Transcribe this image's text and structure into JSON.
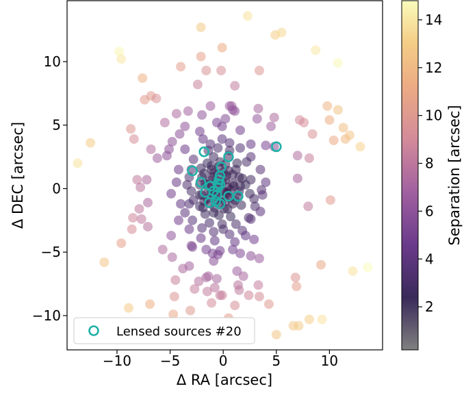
{
  "chart_data": {
    "type": "scatter",
    "xlabel": "Δ RA [arcsec]",
    "ylabel": "Δ DEC [arcsec]",
    "colorbar_label": "Separation [arcsec]",
    "xlim": [
      -14.7,
      15
    ],
    "ylim": [
      -12.7,
      14.8
    ],
    "xticks": [
      -10,
      -5,
      0,
      5,
      10
    ],
    "yticks": [
      -10,
      -5,
      0,
      5,
      10
    ],
    "colorbar_range": [
      0.2,
      14.8
    ],
    "colorbar_ticks": [
      2,
      4,
      6,
      8,
      10,
      12,
      14
    ],
    "colormap": "inferno-like (dark purple = near, pale yellow = far)",
    "grid": false,
    "legend_position": "bottom-left",
    "series": [
      {
        "name": "",
        "marker": "filled circle, alpha 0.5, colored by separation",
        "points": [
          [
            2.3,
            13.6
          ],
          [
            -2.1,
            12.7
          ],
          [
            4.9,
            12.1
          ],
          [
            5.5,
            12.3
          ],
          [
            -9.8,
            10.8
          ],
          [
            -9.6,
            10.2
          ],
          [
            8.7,
            10.9
          ],
          [
            -2.1,
            10.4
          ],
          [
            -0.1,
            11.1
          ],
          [
            10.8,
            9.9
          ],
          [
            -4.0,
            9.6
          ],
          [
            -1.6,
            9.3
          ],
          [
            -0.2,
            9.3
          ],
          [
            3.4,
            9.3
          ],
          [
            -7.6,
            8.7
          ],
          [
            -2.4,
            8.2
          ],
          [
            1.1,
            8.1
          ],
          [
            -6.8,
            7.3
          ],
          [
            -6.3,
            7.1
          ],
          [
            -7.4,
            7.0
          ],
          [
            3.3,
            6.3
          ],
          [
            9.8,
            6.5
          ],
          [
            10.8,
            6.2
          ],
          [
            -3.3,
            6.1
          ],
          [
            -1.2,
            6.5
          ],
          [
            0.6,
            6.5
          ],
          [
            0.9,
            6.2
          ],
          [
            0.8,
            6.5
          ],
          [
            1.1,
            6.1
          ],
          [
            -4.4,
            5.9
          ],
          [
            -2.0,
            5.8
          ],
          [
            -0.6,
            5.2
          ],
          [
            0.2,
            5.5
          ],
          [
            3.2,
            5.5
          ],
          [
            4.8,
            5.6
          ],
          [
            7.2,
            5.4
          ],
          [
            10.0,
            5.4
          ],
          [
            11.3,
            4.8
          ],
          [
            -5.5,
            5.2
          ],
          [
            -8.7,
            4.7
          ],
          [
            -4.1,
            4.3
          ],
          [
            -2.2,
            4.5
          ],
          [
            -3.6,
            4.9
          ],
          [
            -0.1,
            4.9
          ],
          [
            1.6,
            4.6
          ],
          [
            4.5,
            4.9
          ],
          [
            7.6,
            5.2
          ],
          [
            8.4,
            4.3
          ],
          [
            11.9,
            4.2
          ],
          [
            -12.5,
            3.6
          ],
          [
            -8.4,
            3.9
          ],
          [
            -4.8,
            3.7
          ],
          [
            -0.1,
            3.9
          ],
          [
            -1.9,
            3.9
          ],
          [
            -1.2,
            3.5
          ],
          [
            0.6,
            3.6
          ],
          [
            2.6,
            3.5
          ],
          [
            4.0,
            3.4
          ],
          [
            10.4,
            3.8
          ],
          [
            11.5,
            3.9
          ],
          [
            -6.8,
            3.1
          ],
          [
            -5.1,
            3.1
          ],
          [
            -3.6,
            3.1
          ],
          [
            -1.4,
            3.0
          ],
          [
            -0.5,
            3.2
          ],
          [
            0.6,
            3.0
          ],
          [
            1.6,
            3.2
          ],
          [
            4.8,
            3.3
          ],
          [
            12.9,
            3.3
          ],
          [
            -13.7,
            2.0
          ],
          [
            -6.2,
            2.4
          ],
          [
            -5.3,
            2.6
          ],
          [
            -2.8,
            2.3
          ],
          [
            -1.5,
            2.0
          ],
          [
            -0.9,
            2.5
          ],
          [
            0.5,
            2.6
          ],
          [
            2.6,
            2.5
          ],
          [
            3.5,
            1.5
          ],
          [
            7.0,
            2.6
          ],
          [
            8.1,
            2.4
          ],
          [
            -4.2,
            1.5
          ],
          [
            -3.0,
            1.5
          ],
          [
            -2.1,
            1.6
          ],
          [
            -1.1,
            1.8
          ],
          [
            -0.3,
            2.1
          ],
          [
            1.3,
            2.0
          ],
          [
            2.2,
            2.1
          ],
          [
            -8.1,
            0.7
          ],
          [
            -7.2,
            0.7
          ],
          [
            -3.2,
            0.9
          ],
          [
            -2.0,
            0.9
          ],
          [
            -0.9,
            1.2
          ],
          [
            0.3,
            1.0
          ],
          [
            1.5,
            0.9
          ],
          [
            2.6,
            0.7
          ],
          [
            4.0,
            0.5
          ],
          [
            7.0,
            0.8
          ],
          [
            -7.8,
            0.1
          ],
          [
            -4.4,
            0.5
          ],
          [
            -3.4,
            0.3
          ],
          [
            -1.5,
            0.3
          ],
          [
            -0.6,
            0.6
          ],
          [
            0.9,
            0.4
          ],
          [
            2.1,
            0.3
          ],
          [
            3.6,
            -0.1
          ],
          [
            -4.9,
            -0.4
          ],
          [
            -3.0,
            -0.2
          ],
          [
            -2.2,
            -0.5
          ],
          [
            -1.1,
            -0.3
          ],
          [
            0.4,
            -0.4
          ],
          [
            1.5,
            -0.2
          ],
          [
            2.5,
            -0.4
          ],
          [
            3.7,
            -0.5
          ],
          [
            -2.8,
            -0.9
          ],
          [
            -1.8,
            -1.0
          ],
          [
            -0.2,
            -1.1
          ],
          [
            1.1,
            -0.9
          ],
          [
            2.9,
            -0.8
          ],
          [
            10.1,
            -0.9
          ],
          [
            -7.1,
            -1.1
          ],
          [
            -4.0,
            -1.2
          ],
          [
            -3.2,
            -1.2
          ],
          [
            -2.2,
            -1.4
          ],
          [
            -0.8,
            -1.5
          ],
          [
            0.4,
            -1.6
          ],
          [
            1.7,
            -1.3
          ],
          [
            3.0,
            -1.4
          ],
          [
            -7.9,
            -1.6
          ],
          [
            -3.6,
            -1.9
          ],
          [
            -1.7,
            -2.0
          ],
          [
            -0.4,
            -2.1
          ],
          [
            0.7,
            -2.2
          ],
          [
            2.4,
            -2.3
          ],
          [
            3.5,
            -1.8
          ],
          [
            8.0,
            -1.4
          ],
          [
            -8.5,
            -2.3
          ],
          [
            -7.7,
            -2.4
          ],
          [
            -4.2,
            -2.5
          ],
          [
            -2.9,
            -2.5
          ],
          [
            -1.3,
            -2.7
          ],
          [
            -0.1,
            -2.8
          ],
          [
            1.2,
            -2.8
          ],
          [
            2.6,
            -2.4
          ],
          [
            -2.0,
            -3.1
          ],
          [
            0.0,
            -3.2
          ],
          [
            1.8,
            -3.3
          ],
          [
            -7.1,
            -3.0
          ],
          [
            -8.6,
            -3.2
          ],
          [
            -3.2,
            -3.2
          ],
          [
            -0.9,
            -3.4
          ],
          [
            0.6,
            -3.6
          ],
          [
            2.1,
            -3.7
          ],
          [
            -4.9,
            -3.7
          ],
          [
            -2.1,
            -3.9
          ],
          [
            -0.8,
            -4.1
          ],
          [
            1.1,
            -4.2
          ],
          [
            2.9,
            -4.0
          ],
          [
            -2.9,
            -4.6
          ],
          [
            -1.6,
            -4.8
          ],
          [
            -0.3,
            -4.9
          ],
          [
            0.9,
            -4.8
          ],
          [
            -9.6,
            -4.3
          ],
          [
            -5.7,
            -4.8
          ],
          [
            -3.0,
            -4.5
          ],
          [
            -1.0,
            -5.1
          ],
          [
            -4.8,
            -5.4
          ],
          [
            -0.5,
            -5.2
          ],
          [
            1.6,
            -5.1
          ],
          [
            2.6,
            -5.3
          ],
          [
            -11.2,
            -5.8
          ],
          [
            -3.2,
            -6.1
          ],
          [
            -0.9,
            -5.7
          ],
          [
            3.4,
            -5.5
          ],
          [
            9.2,
            -6.0
          ],
          [
            12.2,
            -6.5
          ],
          [
            13.6,
            -6.2
          ],
          [
            -3.8,
            -6.3
          ],
          [
            -1.4,
            -6.9
          ],
          [
            1.3,
            -6.5
          ],
          [
            -4.5,
            -7.2
          ],
          [
            -1.6,
            -7.0
          ],
          [
            -0.6,
            -7.1
          ],
          [
            1.9,
            -6.9
          ],
          [
            6.8,
            -7.0
          ],
          [
            -2.3,
            -7.3
          ],
          [
            -0.8,
            -7.8
          ],
          [
            1.4,
            -7.6
          ],
          [
            3.3,
            -7.6
          ],
          [
            6.9,
            -7.7
          ],
          [
            -2.7,
            -7.9
          ],
          [
            -1.5,
            -8.1
          ],
          [
            -0.3,
            -8.4
          ],
          [
            2.4,
            -8.4
          ],
          [
            3.4,
            -8.5
          ],
          [
            -4.6,
            -8.5
          ],
          [
            -0.1,
            -8.4
          ],
          [
            1.5,
            -8.0
          ],
          [
            -6.9,
            -9.1
          ],
          [
            -8.9,
            -9.4
          ],
          [
            0.5,
            -10.2
          ],
          [
            5.0,
            -11.5
          ],
          [
            6.6,
            -10.8
          ],
          [
            7.1,
            -10.8
          ],
          [
            8.1,
            -10.3
          ],
          [
            9.3,
            -10.3
          ],
          [
            -4.7,
            -9.9
          ],
          [
            -3.1,
            -9.6
          ],
          [
            1.1,
            -9.2
          ],
          [
            -1.1,
            -9.0
          ],
          [
            4.3,
            -9.1
          ],
          [
            -1.1,
            0.0
          ],
          [
            -0.7,
            0.1
          ],
          [
            -0.4,
            0.3
          ],
          [
            -0.1,
            0.5
          ],
          [
            0.2,
            0.7
          ],
          [
            0.4,
            0.1
          ],
          [
            0.7,
            -0.1
          ],
          [
            1.0,
            0.2
          ],
          [
            -0.9,
            -0.6
          ],
          [
            -0.6,
            -0.4
          ],
          [
            -0.3,
            -0.7
          ],
          [
            0.0,
            -0.2
          ],
          [
            0.3,
            -0.3
          ],
          [
            0.6,
            -0.7
          ],
          [
            -1.3,
            0.6
          ],
          [
            -1.0,
            0.9
          ],
          [
            -0.5,
            1.1
          ],
          [
            0.0,
            1.3
          ],
          [
            0.5,
            1.4
          ],
          [
            0.9,
            1.1
          ],
          [
            -1.7,
            0.4
          ],
          [
            -1.4,
            -0.2
          ],
          [
            -1.5,
            -0.8
          ],
          [
            -1.2,
            -1.2
          ],
          [
            -0.6,
            -1.0
          ],
          [
            0.2,
            -1.0
          ],
          [
            0.9,
            -1.2
          ],
          [
            1.3,
            -0.6
          ],
          [
            1.6,
            0.2
          ],
          [
            1.8,
            0.8
          ],
          [
            1.2,
            1.5
          ],
          [
            0.2,
            1.9
          ],
          [
            -0.4,
            1.7
          ],
          [
            -1.1,
            1.5
          ],
          [
            -1.8,
            1.2
          ],
          [
            -2.2,
            0.3
          ],
          [
            -2.0,
            -0.5
          ],
          [
            -1.9,
            -1.5
          ],
          [
            -0.9,
            -1.9
          ],
          [
            0.1,
            -1.6
          ]
        ]
      },
      {
        "name": "Lensed sources #20",
        "marker": "open circle, teal",
        "points": [
          [
            5.0,
            3.3
          ],
          [
            -1.8,
            2.9
          ],
          [
            0.5,
            2.5
          ],
          [
            -2.9,
            1.4
          ],
          [
            -0.2,
            1.7
          ],
          [
            -0.3,
            1.0
          ],
          [
            -0.4,
            0.7
          ],
          [
            -0.5,
            0.4
          ],
          [
            -0.3,
            0.3
          ],
          [
            -0.5,
            0.1
          ],
          [
            -2.1,
            0.5
          ],
          [
            -1.7,
            -0.3
          ],
          [
            -0.9,
            -0.2
          ],
          [
            -1.2,
            0.2
          ],
          [
            -0.6,
            -0.5
          ],
          [
            0.5,
            -0.6
          ],
          [
            1.4,
            -0.6
          ],
          [
            -0.3,
            -1.2
          ],
          [
            -0.7,
            -1.0
          ],
          [
            -1.3,
            -1.1
          ]
        ]
      }
    ]
  },
  "legend": {
    "position": "bottom-left",
    "label": "Lensed sources #20",
    "marker_color": "#1fb0a8"
  },
  "colors": {
    "lensed_edge": "#1fb0a8",
    "axes": "#000000",
    "background": "#ffffff"
  }
}
